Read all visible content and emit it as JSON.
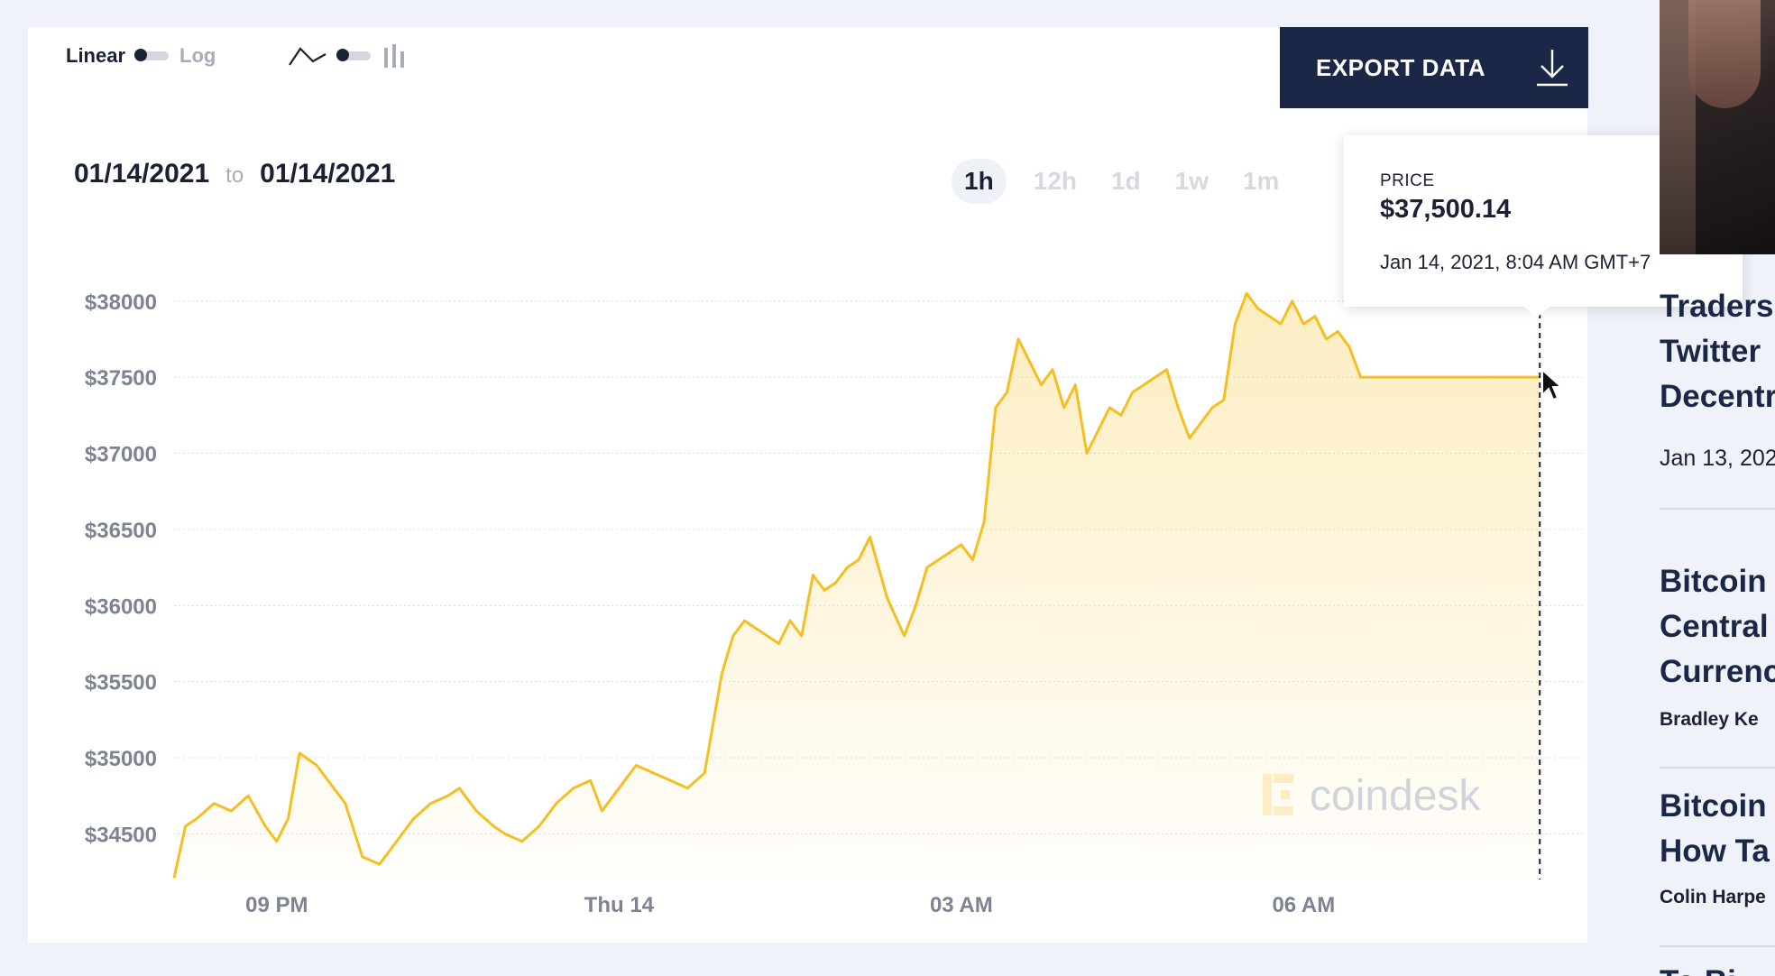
{
  "toggles": {
    "scale_linear": "Linear",
    "scale_log": "Log"
  },
  "export": {
    "label": "EXPORT DATA"
  },
  "date_range": {
    "from": "01/14/2021",
    "to_word": "to",
    "to": "01/14/2021"
  },
  "tabs": [
    {
      "label": "1h",
      "active": true
    },
    {
      "label": "12h",
      "active": false
    },
    {
      "label": "1d",
      "active": false
    },
    {
      "label": "1w",
      "active": false
    },
    {
      "label": "1m",
      "active": false
    }
  ],
  "tooltip": {
    "label": "PRICE",
    "price": "$37,500.14",
    "time": "Jan 14, 2021, 8:04 AM GMT+7"
  },
  "watermark": "coindesk",
  "colors": {
    "line": "#f5bf22",
    "accent_dark": "#1b2747"
  },
  "chart_data": {
    "type": "area",
    "ylim": [
      34200,
      38200
    ],
    "y_ticks": [
      38000,
      37500,
      37000,
      36500,
      36000,
      35500,
      35000,
      34500
    ],
    "y_tick_labels": [
      "$38000",
      "$37500",
      "$37000",
      "$36500",
      "$36000",
      "$35500",
      "$35000",
      "$34500"
    ],
    "x_ticks": [
      "09 PM",
      "Thu 14",
      "03 AM",
      "06 AM"
    ],
    "x_tick_hours": [
      21,
      24,
      27,
      30
    ],
    "x_range_hours": [
      20.1,
      32.1
    ],
    "hover_hour": 32.07,
    "series": [
      {
        "x": [
          20.1,
          20.2,
          20.3,
          20.45,
          20.6,
          20.75,
          20.9,
          21.0,
          21.1,
          21.2,
          21.35,
          21.5,
          21.6,
          21.75,
          21.9,
          22.0,
          22.1,
          22.2,
          22.35,
          22.5,
          22.6,
          22.75,
          22.9,
          23.0,
          23.15,
          23.3,
          23.45,
          23.6,
          23.75,
          23.85,
          24.0,
          24.15,
          24.3,
          24.45,
          24.6,
          24.75,
          24.9,
          25.0,
          25.1,
          25.2,
          25.4,
          25.5,
          25.6,
          25.7,
          25.8,
          25.9,
          26.0,
          26.1,
          26.2,
          26.35,
          26.5,
          26.6,
          26.7,
          26.8,
          26.9,
          27.0,
          27.1,
          27.2,
          27.3,
          27.4,
          27.5,
          27.6,
          27.7,
          27.8,
          27.9,
          28.0,
          28.1,
          28.2,
          28.3,
          28.4,
          28.5,
          28.6,
          28.7,
          28.8,
          28.9,
          29.0,
          29.1,
          29.2,
          29.3,
          29.4,
          29.5,
          29.6,
          29.7,
          29.8,
          29.9,
          30.0,
          30.1,
          30.2,
          30.3,
          30.4,
          30.5,
          30.6,
          30.7,
          30.8,
          30.9,
          31.0,
          31.1,
          31.2,
          31.3,
          31.4,
          31.5,
          31.6,
          31.7,
          31.8,
          31.9,
          32.0,
          32.07
        ],
        "values": [
          34210,
          34550,
          34600,
          34700,
          34650,
          34750,
          34550,
          34450,
          34600,
          35030,
          34950,
          34800,
          34700,
          34350,
          34300,
          34400,
          34500,
          34600,
          34700,
          34750,
          34800,
          34650,
          34550,
          34500,
          34450,
          34550,
          34700,
          34800,
          34850,
          34650,
          34800,
          34950,
          34900,
          34850,
          34800,
          34900,
          35550,
          35800,
          35900,
          35850,
          35750,
          35900,
          35800,
          36200,
          36100,
          36150,
          36250,
          36300,
          36450,
          36050,
          35800,
          36000,
          36250,
          36300,
          36350,
          36400,
          36300,
          36550,
          37300,
          37400,
          37750,
          37600,
          37450,
          37550,
          37300,
          37450,
          37000,
          37150,
          37300,
          37250,
          37400,
          37450,
          37500,
          37550,
          37300,
          37100,
          37200,
          37300,
          37350,
          37850,
          38050,
          37950,
          37900,
          37850,
          38000,
          37850,
          37900,
          37750,
          37800,
          37700,
          37500,
          37500,
          37500,
          37500,
          37500,
          37500,
          37500,
          37500,
          37500,
          37500,
          37500,
          37500,
          37500,
          37500,
          37500,
          37500,
          37500
        ]
      }
    ]
  },
  "sidebar": {
    "story1": {
      "lines": [
        "Traders",
        "Twitter",
        "Decentr"
      ],
      "date": "Jan 13, 202"
    },
    "story2": {
      "lines": [
        "Bitcoin",
        "Central",
        "Currenc"
      ],
      "author": "Bradley Ke"
    },
    "story3": {
      "lines": [
        "Bitcoin",
        "How Ta"
      ],
      "author": "Colin Harpe"
    },
    "story4": {
      "lines": [
        "To Bi"
      ]
    }
  }
}
